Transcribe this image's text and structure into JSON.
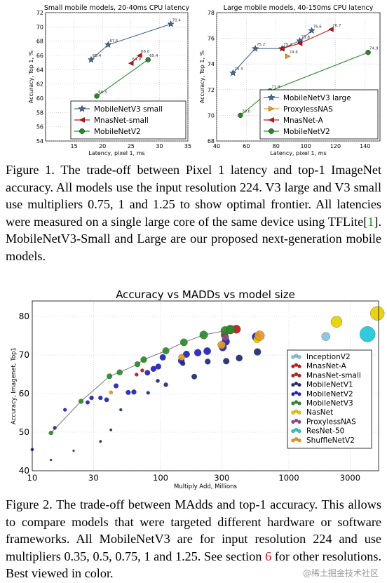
{
  "figure1": {
    "caption_label": "Figure 1.",
    "caption_text": "The trade-off between Pixel 1 latency and top-1 ImageNet accuracy. All models use the input resolution 224. V3 large and V3 small use multipliers 0.75, 1 and 1.25 to show optimal frontier. All latencies were measured on a single large core of the same device using TFLite[",
    "caption_ref": "1",
    "caption_text2": "]. MobileNetV3-Small and Large are our proposed next-generation mobile models."
  },
  "figure2": {
    "caption_label": "Figure 2.",
    "caption_text": "The trade-off between MAdds and top-1 accuracy. This allows to compare models that were targeted different hardware or software frameworks. All MobileNetV3 are for input resolution 224 and use multipliers 0.35, 0.5, 0.75, 1 and 1.25. See section ",
    "caption_ref": "6",
    "caption_text2": " for other resolutions. Best viewed in color."
  },
  "watermark": "@稀土掘金技术社区",
  "chart_data": [
    {
      "type": "line",
      "title": "Small mobile models, 20-40ms CPU latency",
      "xlabel": "Latency, pixel 1, ms",
      "ylabel": "Accuracy, Top 1, %",
      "xlim": [
        10,
        35
      ],
      "ylim": [
        54,
        72
      ],
      "xticks": [
        15,
        20,
        25,
        30,
        35
      ],
      "yticks": [
        54,
        56,
        58,
        60,
        62,
        64,
        66,
        68,
        70,
        72
      ],
      "legend": "bottom-right",
      "series": [
        {
          "name": "MobileNetV3 small",
          "color": "#4c6b9a",
          "marker": "star",
          "x": [
            18,
            21,
            32
          ],
          "y": [
            65.4,
            67.5,
            70.4
          ],
          "labels": [
            "65.4",
            "67.5",
            "70.4"
          ]
        },
        {
          "name": "MnasNet-small",
          "color": "#c0171a",
          "marker": "tri-left",
          "x": [
            25,
            26.5
          ],
          "y": [
            64.9,
            66.0
          ],
          "labels": [
            "64.9",
            "66.0"
          ]
        },
        {
          "name": "MobileNetV2",
          "color": "#2a8a2a",
          "marker": "circle",
          "x": [
            19,
            28
          ],
          "y": [
            60.3,
            65.4
          ],
          "labels": [
            "60.3",
            "65.4"
          ]
        }
      ]
    },
    {
      "type": "line",
      "title": "Large mobile models, 40-150ms CPU latency",
      "xlabel": "Latency, pixel 1, ms",
      "ylabel": "Accuracy, Top 1, %",
      "xlim": [
        40,
        150
      ],
      "ylim": [
        68,
        78
      ],
      "xticks": [
        40,
        60,
        80,
        100,
        120,
        140
      ],
      "yticks": [
        68,
        70,
        72,
        74,
        76,
        78
      ],
      "legend": "bottom-right",
      "series": [
        {
          "name": "MobileNetV3 large",
          "color": "#4c6b9a",
          "marker": "star",
          "x": [
            51,
            66,
            84,
            96,
            104
          ],
          "y": [
            73.3,
            75.2,
            75.2,
            75.8,
            76.6
          ],
          "labels": [
            "73.3",
            "75.2",
            "75.2",
            "75.8",
            "76.6"
          ]
        },
        {
          "name": "ProxylessNAS",
          "color": "#e8a020",
          "marker": "tri-right",
          "x": [
            88
          ],
          "y": [
            74.6
          ],
          "labels": [
            "74.6"
          ]
        },
        {
          "name": "MnasNet-A",
          "color": "#c0171a",
          "marker": "tri-left",
          "x": [
            84,
            96,
            117
          ],
          "y": [
            75.2,
            75.6,
            76.7
          ],
          "labels": [
            "",
            "",
            "76.7"
          ]
        },
        {
          "name": "MobileNetV2",
          "color": "#2a8a2a",
          "marker": "circle",
          "x": [
            56,
            76,
            142
          ],
          "y": [
            70.0,
            71.9,
            74.9
          ],
          "labels": [
            "70.0",
            "71.9",
            "74.9"
          ]
        }
      ]
    },
    {
      "type": "scatter",
      "title": "Accuracy vs MADDs vs model size",
      "xlabel": "Multiply Add, Millions",
      "ylabel": "Accuracy, Imagenet, Top1",
      "xscale": "log",
      "xlim": [
        10,
        5000
      ],
      "ylim": [
        40,
        84
      ],
      "xticks": [
        10,
        30,
        100,
        300,
        1000,
        3000
      ],
      "yticks": [
        40,
        50,
        60,
        70,
        80
      ],
      "grid": true,
      "legend": "right",
      "series": [
        {
          "name": "InceptionV2",
          "color": "#7fc4e0",
          "x": [
            1940
          ],
          "y": [
            74.8
          ],
          "size": [
            6
          ]
        },
        {
          "name": "MnasNet-A",
          "color": "#c0171a",
          "x": [
            315,
            350,
            390
          ],
          "y": [
            75.2,
            76.5,
            76.7
          ],
          "size": [
            5,
            5.5,
            6
          ]
        },
        {
          "name": "MnasNet-small",
          "color": "#c0171a",
          "x": [
            65,
            72
          ],
          "y": [
            64.9,
            66.0
          ],
          "size": [
            2.5,
            2.5
          ]
        },
        {
          "name": "MobileNetV1",
          "color": "#1c2a6e",
          "x": [
            14,
            21,
            34,
            41,
            49,
            80,
            95,
            110,
            149,
            183,
            233,
            325,
            410,
            569
          ],
          "y": [
            42.8,
            45.2,
            47.6,
            50.6,
            55.8,
            60.2,
            63.3,
            62.3,
            67.8,
            64.4,
            68.3,
            68.4,
            69.2,
            70.8
          ],
          "size": [
            1.5,
            1.5,
            1.8,
            1.8,
            2.0,
            2.4,
            2.6,
            3.0,
            3.4,
            3.8,
            4.0,
            4.4,
            4.6,
            5.0
          ]
        },
        {
          "name": "MobileNetV2",
          "color": "#2222bb",
          "x": [
            10,
            15,
            18,
            27,
            29,
            34,
            38,
            45,
            56,
            62,
            79,
            88,
            96,
            104,
            145,
            159,
            195,
            231,
            305,
            322,
            557
          ],
          "y": [
            45.5,
            51.1,
            55.8,
            57.7,
            58.9,
            58.9,
            58.4,
            62.0,
            60.3,
            60.4,
            65.4,
            66.4,
            67.0,
            69.4,
            68.5,
            70.2,
            70.6,
            71.0,
            72.0,
            73.5,
            74.7
          ],
          "size": [
            2.2,
            2.5,
            2.5,
            2.8,
            3.0,
            3.0,
            3.2,
            3.4,
            3.4,
            3.5,
            3.8,
            4.0,
            4.0,
            4.3,
            4.5,
            4.8,
            5.0,
            5.2,
            5.4,
            5.6,
            6.0
          ]
        },
        {
          "name": "MobileNetV3",
          "color": "#2a8a2a",
          "x": [
            14,
            24,
            40,
            48,
            66,
            74,
            110,
            152,
            217,
            319,
            350
          ],
          "y": [
            49.8,
            58.0,
            64.5,
            65.5,
            67.6,
            68.8,
            71.1,
            73.3,
            75.2,
            76.3,
            76.6
          ],
          "size": [
            3,
            3.4,
            3.8,
            4,
            4,
            4.4,
            4.8,
            5.2,
            5.8,
            6.2,
            6.4
          ]
        },
        {
          "name": "NasNet",
          "color": "#e6d000",
          "x": [
            564,
            2350,
            4890
          ],
          "y": [
            74.0,
            78.6,
            80.8
          ],
          "size": [
            5,
            8,
            10
          ]
        },
        {
          "name": "ProxylessNAS",
          "color": "#8a4a8a",
          "x": [
            320
          ],
          "y": [
            74.6
          ],
          "size": [
            5
          ]
        },
        {
          "name": "ResNet-50",
          "color": "#20c8d8",
          "x": [
            4100
          ],
          "y": [
            75.4
          ],
          "size": [
            11
          ]
        },
        {
          "name": "ShuffleNetV2",
          "color": "#e89a20",
          "x": [
            41,
            146,
            299,
            591
          ],
          "y": [
            60.3,
            69.4,
            72.6,
            75.0
          ],
          "size": [
            2.5,
            4.5,
            5.5,
            7
          ]
        }
      ]
    }
  ]
}
